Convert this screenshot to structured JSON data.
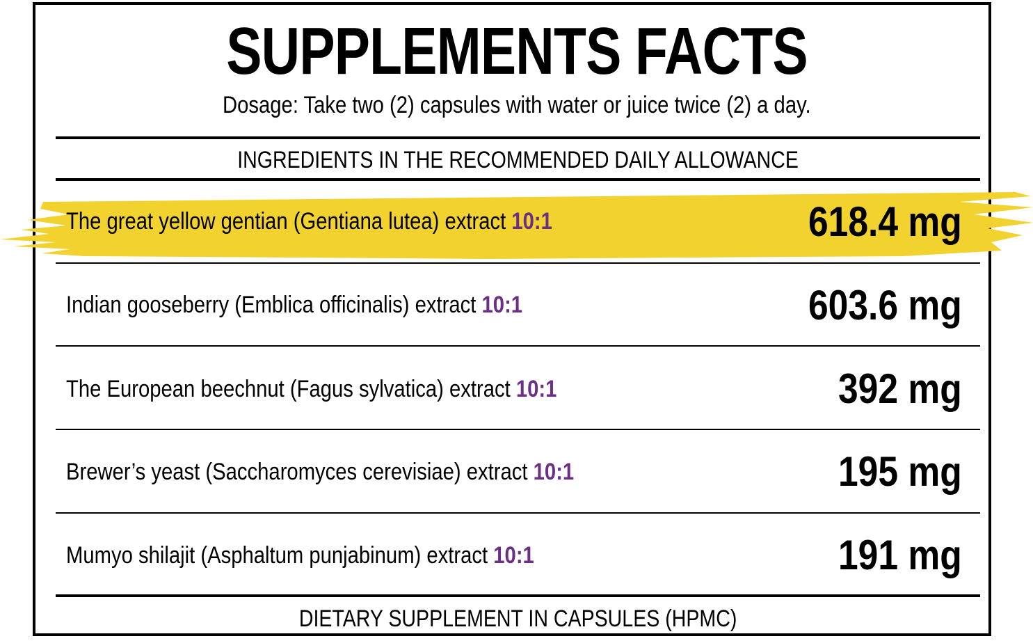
{
  "title": "SUPPLEMENTS FACTS",
  "dosage": "Dosage: Take two (2) capsules with water or juice twice (2) a day.",
  "section_header": "INGREDIENTS IN THE RECOMMENDED DAILY ALLOWANCE",
  "ingredients": [
    {
      "name": "The great yellow gentian (Gentiana lutea) extract",
      "ratio": "10:1",
      "amount": "618.4 mg",
      "highlighted": true
    },
    {
      "name": "Indian gooseberry (Emblica officinalis) extract",
      "ratio": "10:1",
      "amount": "603.6 mg",
      "highlighted": false
    },
    {
      "name": "The European beechnut (Fagus sylvatica) extract",
      "ratio": "10:1",
      "amount": "392 mg",
      "highlighted": false
    },
    {
      "name": "Brewer’s yeast (Saccharomyces cerevisiae) extract",
      "ratio": "10:1",
      "amount": "195 mg",
      "highlighted": false
    },
    {
      "name": "Mumyo shilajit (Asphaltum punjabinum) extract",
      "ratio": "10:1",
      "amount": "191 mg",
      "highlighted": false
    }
  ],
  "footer": "DIETARY SUPPLEMENT IN CAPSULES (HPMC)",
  "colors": {
    "highlight": "#f2d22e",
    "ratio": "#6b2f86",
    "border": "#000000"
  }
}
